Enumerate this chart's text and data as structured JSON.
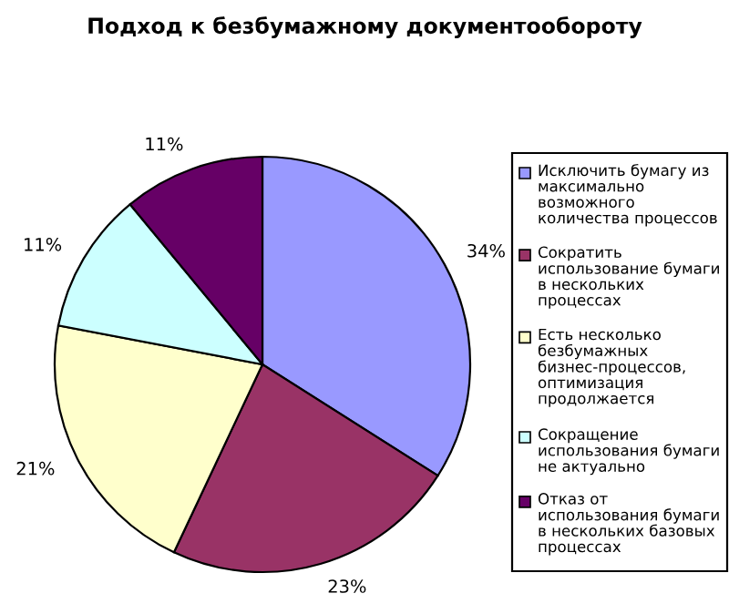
{
  "chart_data": {
    "type": "pie",
    "title": "Подход к безбумажному документообороту",
    "categories": [
      "Исключить бумагу из максимально возможного количества процессов",
      "Сократить использование бумаги в нескольких процессах",
      "Есть несколько безбумажных бизнес-процессов, оптимизация продолжается",
      "Сокращение использования бумаги не актуально",
      "Отказ от использования бумаги в нескольких базовых процессах"
    ],
    "values": [
      34,
      23,
      21,
      11,
      11
    ],
    "value_labels": [
      "34%",
      "23%",
      "21%",
      "11%",
      "11%"
    ],
    "colors": [
      "#9999ff",
      "#993366",
      "#ffffcc",
      "#ccffff",
      "#660066"
    ],
    "legend": "right"
  }
}
